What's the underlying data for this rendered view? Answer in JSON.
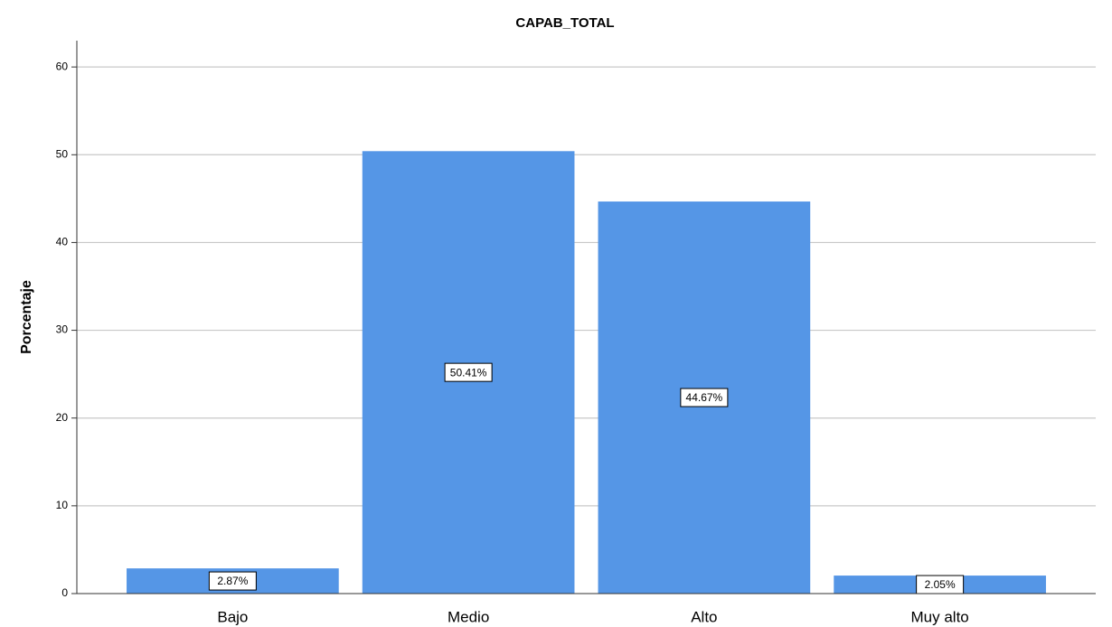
{
  "chart_data": {
    "type": "bar",
    "title": "CAPAB_TOTAL",
    "y_label": "Porcentaje",
    "categories": [
      "Bajo",
      "Medio",
      "Alto",
      "Muy alto"
    ],
    "values": [
      2.87,
      50.41,
      44.67,
      2.05
    ],
    "value_labels": [
      "2.87%",
      "50.41%",
      "44.67%",
      "2.05%"
    ],
    "color": "#5596e6",
    "ylim": [
      0,
      63
    ],
    "yticks": [
      0,
      10,
      20,
      30,
      40,
      50,
      60
    ],
    "grid": true
  }
}
